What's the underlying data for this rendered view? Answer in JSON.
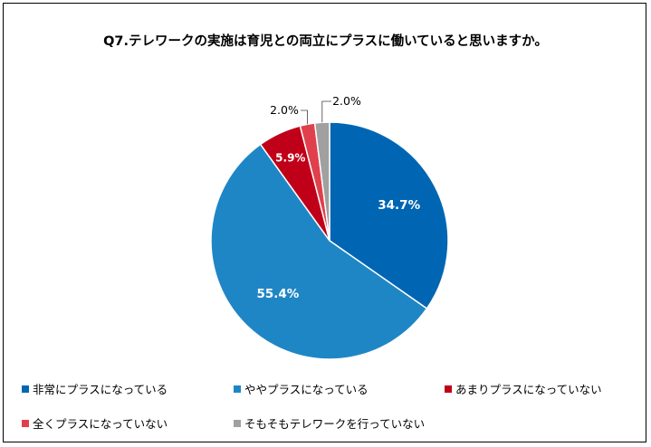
{
  "chart_data": {
    "type": "pie",
    "title": "Q7.テレワークの実施は育児との両立にプラスに働いていると思いますか。",
    "categories": [
      "非常にプラスになっている",
      "ややプラスになっている",
      "あまりプラスになっていない",
      "全くプラスになっていない",
      "そもそもテレワークを行っていない"
    ],
    "values": [
      34.7,
      55.4,
      5.9,
      2.0,
      2.0
    ],
    "value_labels": [
      "34.7%",
      "55.4%",
      "5.9%",
      "2.0%",
      "2.0%"
    ],
    "colors": [
      "#0066b3",
      "#1f86c6",
      "#c00018",
      "#e0404b",
      "#a0a0a0"
    ],
    "legend_position": "bottom",
    "start_angle": "12 o'clock",
    "direction": "clockwise"
  }
}
